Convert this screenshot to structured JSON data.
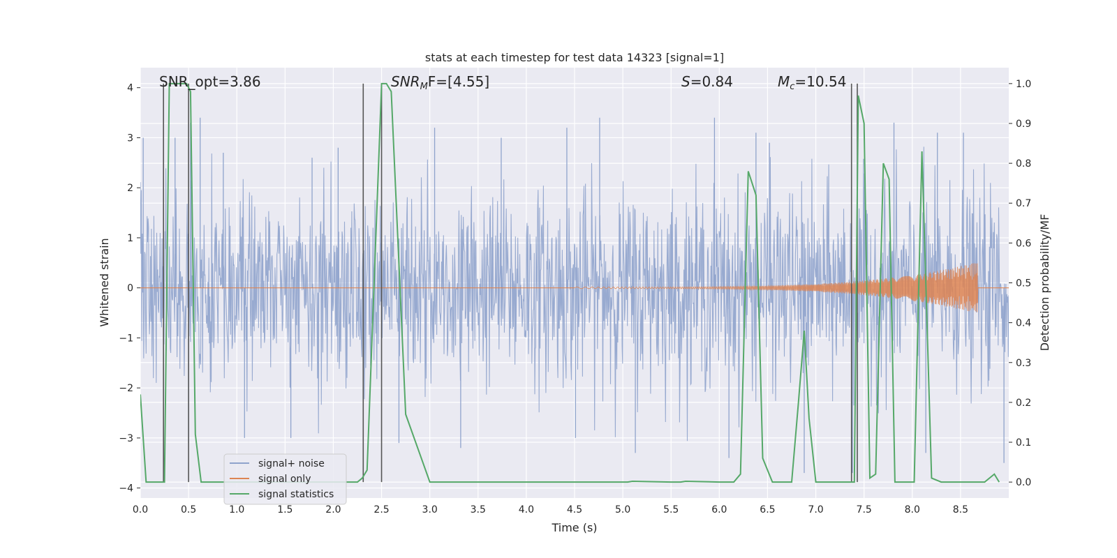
{
  "chart_data": {
    "type": "line",
    "title": "stats at each timestep for test data 14323 [signal=1]",
    "xlabel": "Time (s)",
    "ylabel": "Whitened strain",
    "y2label": "Detection probability/MF",
    "xlim": [
      0.0,
      9.0
    ],
    "ylim": [
      -4.2,
      4.4
    ],
    "y2lim": [
      -0.04,
      1.04
    ],
    "xticks": [
      "0.0",
      "0.5",
      "1.0",
      "1.5",
      "2.0",
      "2.5",
      "3.0",
      "3.5",
      "4.0",
      "4.5",
      "5.0",
      "5.5",
      "6.0",
      "6.5",
      "7.0",
      "7.5",
      "8.0",
      "8.5"
    ],
    "xtick_values": [
      0.0,
      0.5,
      1.0,
      1.5,
      2.0,
      2.5,
      3.0,
      3.5,
      4.0,
      4.5,
      5.0,
      5.5,
      6.0,
      6.5,
      7.0,
      7.5,
      8.0,
      8.5
    ],
    "yticks": [
      "−4",
      "−3",
      "−2",
      "−1",
      "0",
      "1",
      "2",
      "3",
      "4"
    ],
    "ytick_values": [
      -4,
      -3,
      -2,
      -1,
      0,
      1,
      2,
      3,
      4
    ],
    "y2ticks": [
      "0.0",
      "0.1",
      "0.2",
      "0.3",
      "0.4",
      "0.5",
      "0.6",
      "0.7",
      "0.8",
      "0.9",
      "1.0"
    ],
    "y2tick_values": [
      0.0,
      0.1,
      0.2,
      0.3,
      0.4,
      0.5,
      0.6,
      0.7,
      0.8,
      0.9,
      1.0
    ],
    "grid": true,
    "legend_position": "lower-left",
    "annotations": {
      "snr_opt": "SNR_opt=3.86",
      "snr_mf_main": "SNR",
      "snr_mf_sub": "M",
      "snr_mf_rest": "F=[4.55]",
      "s_main": "S",
      "s_rest": "=0.84",
      "mc_main": "M",
      "mc_sub": "c",
      "mc_rest": "=10.54"
    },
    "series": [
      {
        "name": "signal+ noise",
        "color": "#8fa3cc",
        "noise_band_envelope": {
          "x": [
            0.0,
            9.0
          ],
          "p99_max": 3.4,
          "typical_range": [
            -1.8,
            1.8
          ],
          "spikes": [
            {
              "x": 0.03,
              "y": 3.0
            },
            {
              "x": 0.36,
              "y": 3.0
            },
            {
              "x": 0.52,
              "y": 3.3
            },
            {
              "x": 0.62,
              "y": 3.4
            },
            {
              "x": 0.86,
              "y": 2.7
            },
            {
              "x": 1.78,
              "y": 2.6
            },
            {
              "x": 2.05,
              "y": 2.8
            },
            {
              "x": 3.05,
              "y": 3.2
            },
            {
              "x": 3.74,
              "y": 3.0
            },
            {
              "x": 4.42,
              "y": 3.2
            },
            {
              "x": 4.76,
              "y": 3.4
            },
            {
              "x": 5.95,
              "y": 3.4
            },
            {
              "x": 6.38,
              "y": 3.1
            },
            {
              "x": 6.52,
              "y": 2.9
            },
            {
              "x": 7.37,
              "y": 3.3
            },
            {
              "x": 7.81,
              "y": 3.3
            },
            {
              "x": 8.26,
              "y": 3.1
            },
            {
              "x": 8.53,
              "y": 3.1
            },
            {
              "x": 0.5,
              "y": -3.1
            },
            {
              "x": 1.08,
              "y": -3.0
            },
            {
              "x": 1.56,
              "y": -3.0
            },
            {
              "x": 2.68,
              "y": -3.1
            },
            {
              "x": 3.32,
              "y": -3.2
            },
            {
              "x": 4.51,
              "y": -3.0
            },
            {
              "x": 5.13,
              "y": -3.3
            },
            {
              "x": 6.1,
              "y": -3.4
            },
            {
              "x": 6.88,
              "y": -3.7
            },
            {
              "x": 7.38,
              "y": -3.7
            },
            {
              "x": 8.14,
              "y": -3.3
            },
            {
              "x": 8.95,
              "y": -3.5
            }
          ]
        }
      },
      {
        "name": "signal only",
        "color": "#dd8452",
        "chirp": {
          "start": 4.5,
          "end": 8.68,
          "max_amplitude": 0.5
        }
      },
      {
        "name": "signal statistics",
        "color": "#55a868",
        "axis": "right",
        "x": [
          0.0,
          0.06,
          0.25,
          0.3,
          0.48,
          0.52,
          0.57,
          0.63,
          0.8,
          1.5,
          2.0,
          2.25,
          2.3,
          2.35,
          2.5,
          2.55,
          2.6,
          2.75,
          3.0,
          4.0,
          5.0,
          5.05,
          5.1,
          5.5,
          5.6,
          5.65,
          6.0,
          6.15,
          6.22,
          6.3,
          6.38,
          6.45,
          6.55,
          6.75,
          6.82,
          6.88,
          6.93,
          7.0,
          7.2,
          7.35,
          7.4,
          7.44,
          7.5,
          7.56,
          7.62,
          7.7,
          7.76,
          7.82,
          7.95,
          8.02,
          8.1,
          8.2,
          8.3,
          8.5,
          8.75,
          8.85,
          8.9
        ],
        "y": [
          0.22,
          0.0,
          0.0,
          1.0,
          1.0,
          0.98,
          0.12,
          0.0,
          0.0,
          0.0,
          0.0,
          0.0,
          0.01,
          0.03,
          1.0,
          1.0,
          0.98,
          0.17,
          0.0,
          0.0,
          0.0,
          0.0,
          0.002,
          0.0,
          0.0,
          0.002,
          0.0,
          0.0,
          0.02,
          0.78,
          0.72,
          0.06,
          0.0,
          0.0,
          0.2,
          0.38,
          0.16,
          0.0,
          0.0,
          0.0,
          0.0,
          0.97,
          0.9,
          0.01,
          0.02,
          0.8,
          0.76,
          0.0,
          0.0,
          0.0,
          0.83,
          0.01,
          0.0,
          0.0,
          0.0,
          0.02,
          0.0
        ]
      }
    ],
    "vertical_lines": {
      "color": "#555555",
      "x": [
        0.24,
        0.5,
        2.31,
        2.5,
        7.37,
        7.43
      ]
    }
  }
}
